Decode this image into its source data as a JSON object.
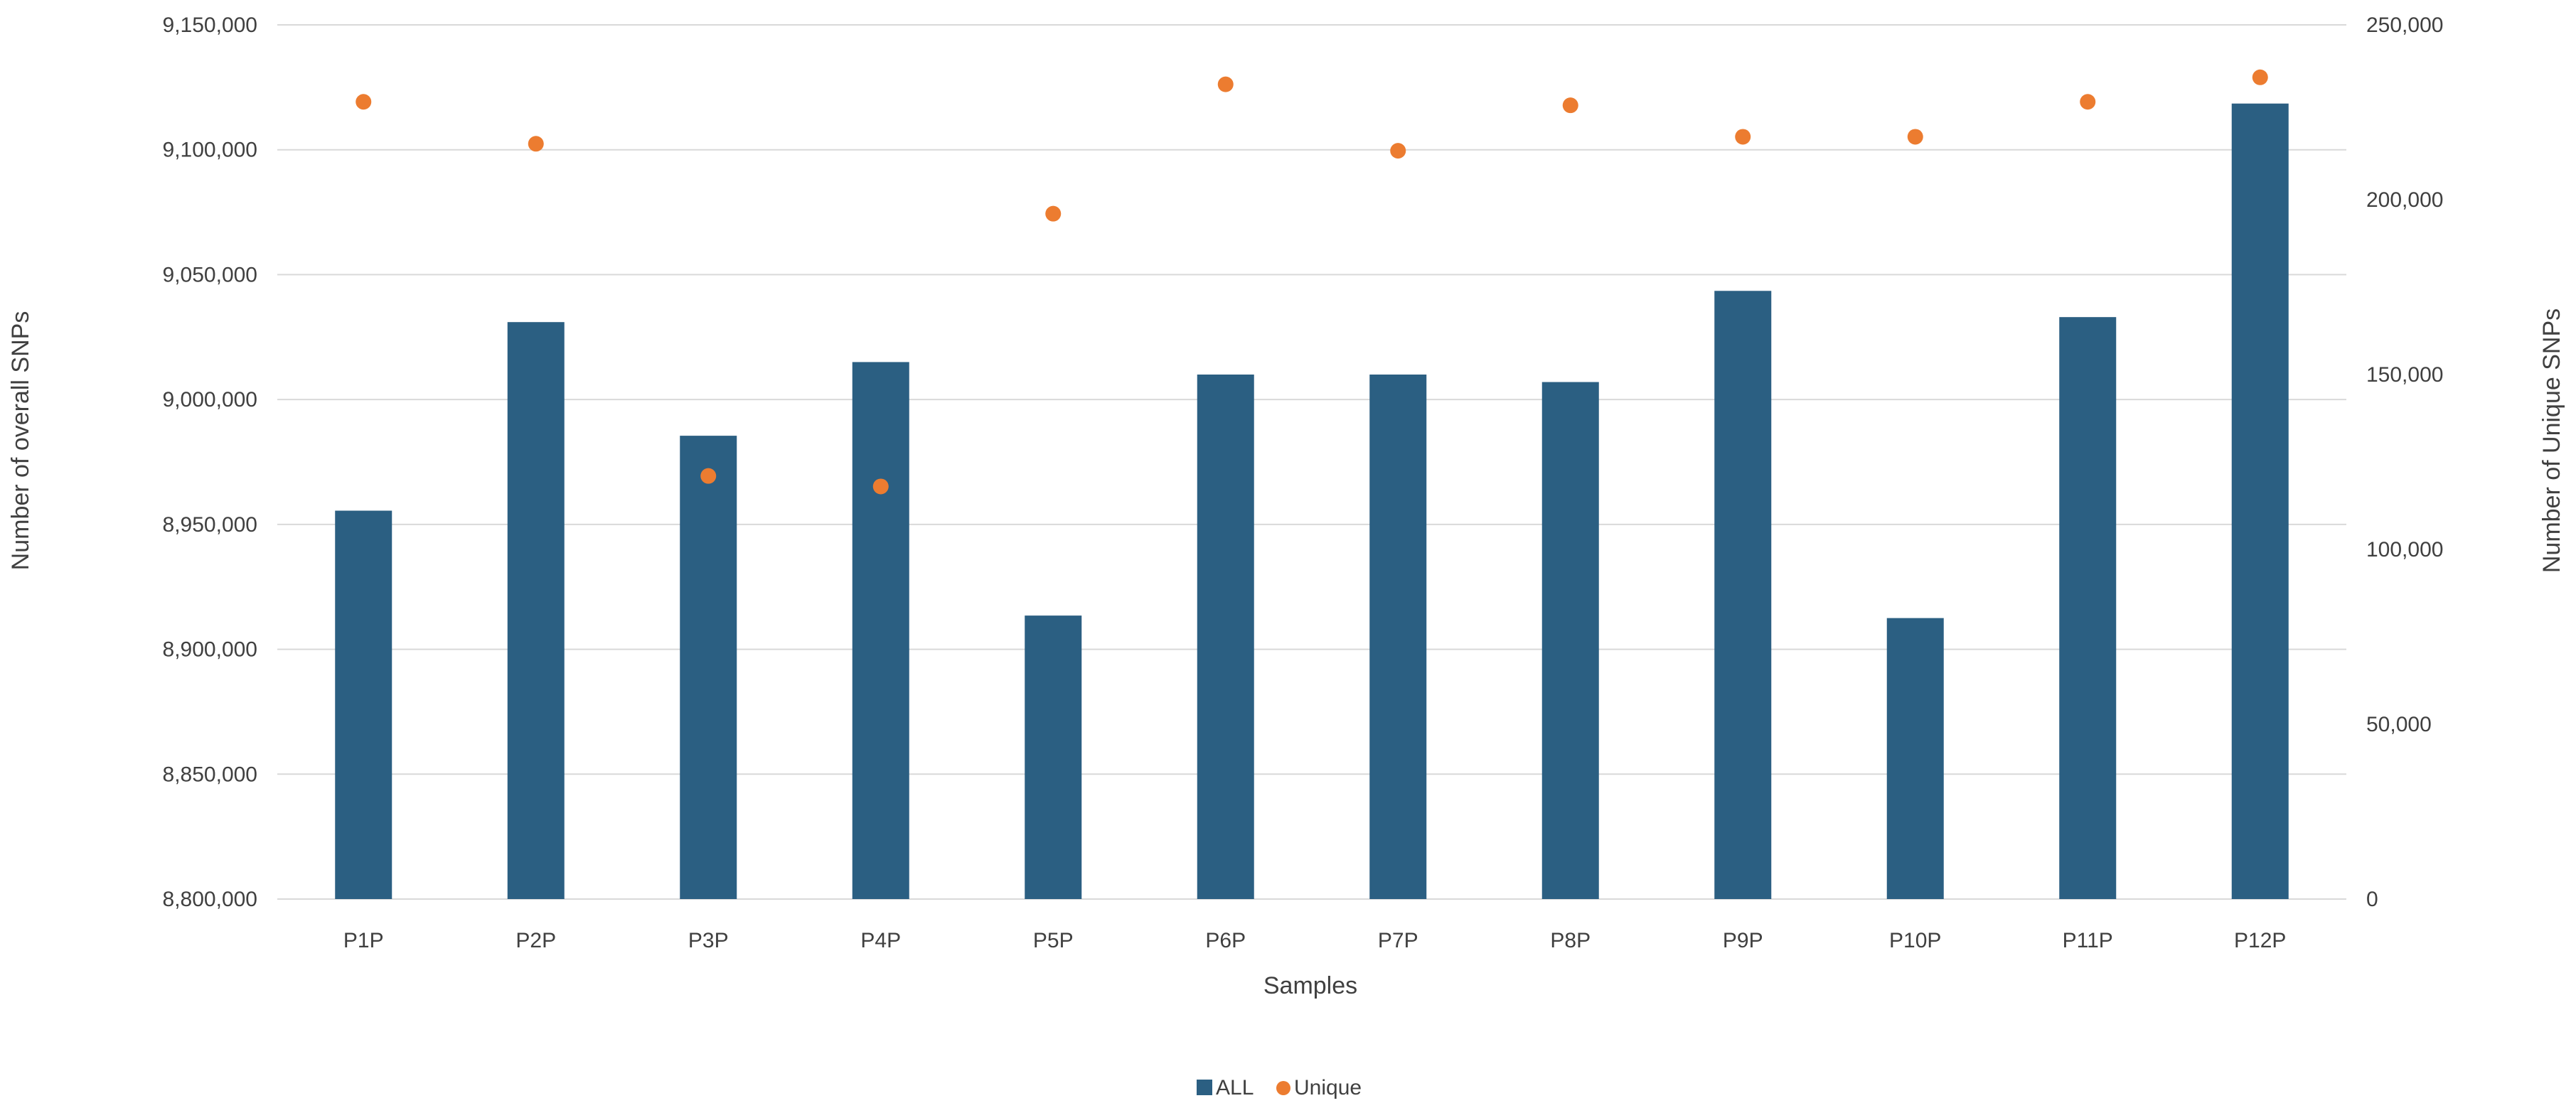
{
  "chart_data": {
    "type": "bar",
    "categories": [
      "P1P",
      "P2P",
      "P3P",
      "P4P",
      "P5P",
      "P6P",
      "P7P",
      "P8P",
      "P9P",
      "P10P",
      "P11P",
      "P12P"
    ],
    "series": [
      {
        "name": "ALL",
        "chart_type": "bar",
        "axis": "left",
        "color": "#2b5f82",
        "values": [
          8955500,
          9031000,
          8985500,
          9015000,
          8913500,
          9010000,
          9010000,
          9007000,
          9043500,
          8912500,
          9033000,
          9118500
        ]
      },
      {
        "name": "Unique",
        "chart_type": "scatter",
        "axis": "right",
        "color": "#ec7c30",
        "values": [
          228000,
          216000,
          121000,
          118000,
          196000,
          233000,
          214000,
          227000,
          218000,
          218000,
          228000,
          235000
        ]
      }
    ],
    "xlabel": "Samples",
    "ylabel": "Number of overall SNPs",
    "y2label": "Number of Unique SNPs",
    "ylim": [
      8800000,
      9150000
    ],
    "y2lim": [
      0,
      250000
    ],
    "yticks": [
      "8,800,000",
      "8,850,000",
      "8,900,000",
      "8,950,000",
      "9,000,000",
      "9,050,000",
      "9,100,000",
      "9,150,000"
    ],
    "y2ticks": [
      "0",
      "50,000",
      "100,000",
      "150,000",
      "200,000",
      "250,000"
    ],
    "grid": true,
    "legend_position": "bottom-center",
    "legend": [
      {
        "label": "ALL",
        "marker": "square",
        "color": "#2b5f82"
      },
      {
        "label": "Unique",
        "marker": "circle",
        "color": "#ec7c30"
      }
    ],
    "gridline_color": "#d9d9d9",
    "text_color": "#404040"
  }
}
